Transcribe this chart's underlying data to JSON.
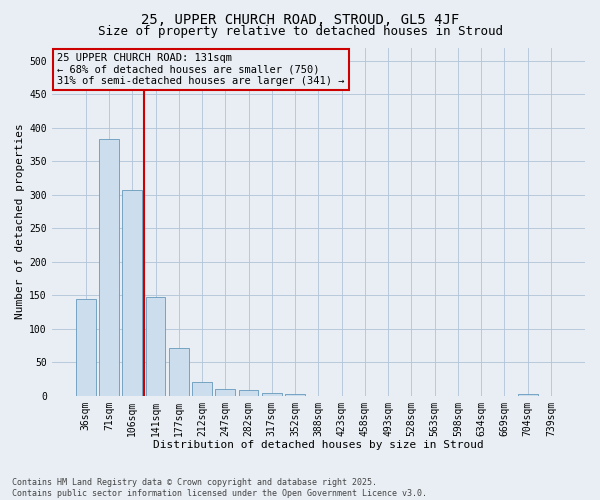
{
  "title_line1": "25, UPPER CHURCH ROAD, STROUD, GL5 4JF",
  "title_line2": "Size of property relative to detached houses in Stroud",
  "xlabel": "Distribution of detached houses by size in Stroud",
  "ylabel": "Number of detached properties",
  "footnote": "Contains HM Land Registry data © Crown copyright and database right 2025.\nContains public sector information licensed under the Open Government Licence v3.0.",
  "bin_labels": [
    "36sqm",
    "71sqm",
    "106sqm",
    "141sqm",
    "177sqm",
    "212sqm",
    "247sqm",
    "282sqm",
    "317sqm",
    "352sqm",
    "388sqm",
    "423sqm",
    "458sqm",
    "493sqm",
    "528sqm",
    "563sqm",
    "598sqm",
    "634sqm",
    "669sqm",
    "704sqm",
    "739sqm"
  ],
  "bar_heights": [
    144,
    383,
    307,
    147,
    72,
    20,
    10,
    8,
    4,
    2,
    0,
    0,
    0,
    0,
    0,
    0,
    0,
    0,
    0,
    2,
    0
  ],
  "bar_color": "#ccdded",
  "bar_edgecolor": "#6699bb",
  "vline_bin_index": 3,
  "vline_color": "#cc0000",
  "ylim": [
    0,
    520
  ],
  "yticks": [
    0,
    50,
    100,
    150,
    200,
    250,
    300,
    350,
    400,
    450,
    500
  ],
  "annotation_line1": "25 UPPER CHURCH ROAD: 131sqm",
  "annotation_line2": "← 68% of detached houses are smaller (750)",
  "annotation_line3": "31% of semi-detached houses are larger (341) →",
  "annotation_box_edgecolor": "#cc0000",
  "background_color": "#e8eef4",
  "grid_color": "#b0c4d8",
  "title_fontsize": 10,
  "subtitle_fontsize": 9,
  "annotation_fontsize": 7.5,
  "tick_fontsize": 7,
  "axis_label_fontsize": 8
}
